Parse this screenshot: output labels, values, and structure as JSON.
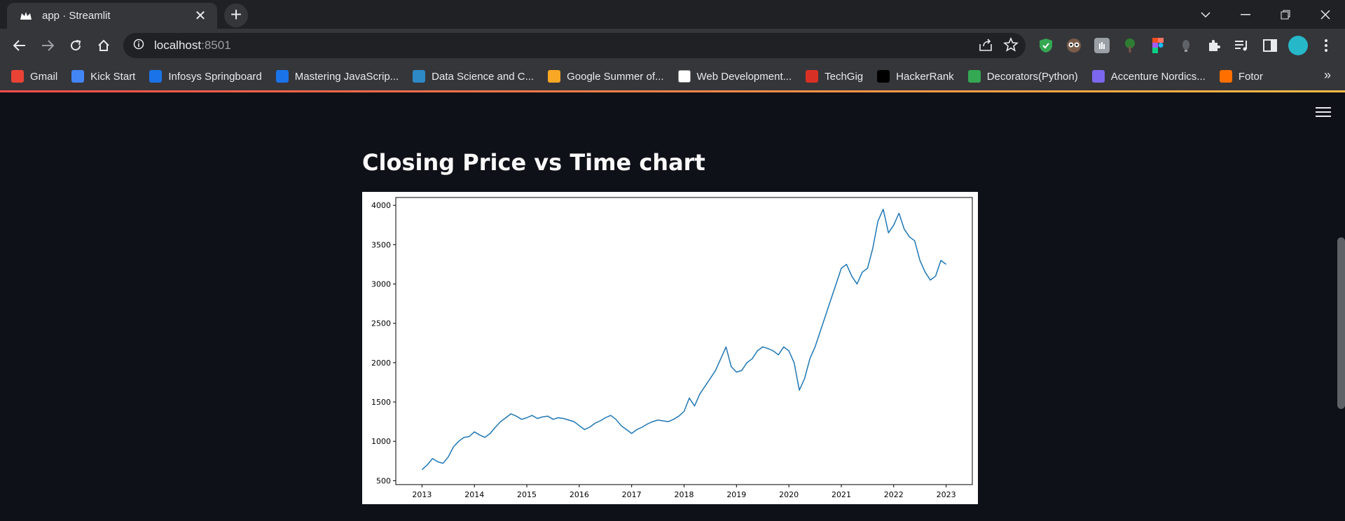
{
  "browser": {
    "tab_title": "app · Streamlit",
    "url_host": "localhost",
    "url_port": ":8501",
    "bookmarks": [
      {
        "label": "Gmail",
        "icon": "gmail-icon",
        "color": "#ea4335"
      },
      {
        "label": "Kick Start",
        "icon": "google-icon",
        "color": "#4285f4"
      },
      {
        "label": "Infosys Springboard",
        "icon": "springboard-icon",
        "color": "#1a73e8"
      },
      {
        "label": "Mastering JavaScrip...",
        "icon": "springboard-icon",
        "color": "#1a73e8"
      },
      {
        "label": "Data Science and C...",
        "icon": "datascience-icon",
        "color": "#2d8ac7"
      },
      {
        "label": "Google Summer of...",
        "icon": "gsoc-icon",
        "color": "#f9a825"
      },
      {
        "label": "Web Development...",
        "icon": "webdev-icon",
        "color": "#ffffff"
      },
      {
        "label": "TechGig",
        "icon": "techgig-icon",
        "color": "#d93025"
      },
      {
        "label": "HackerRank",
        "icon": "hackerrank-icon",
        "color": "#000000"
      },
      {
        "label": "Decorators(Python)",
        "icon": "decorators-icon",
        "color": "#34a853"
      },
      {
        "label": "Accenture Nordics...",
        "icon": "accenture-icon",
        "color": "#7b68ee"
      },
      {
        "label": "Fotor",
        "icon": "fotor-icon",
        "color": "#ff6f00"
      }
    ]
  },
  "page": {
    "heading": "Closing Price vs Time chart"
  },
  "chart_data": {
    "type": "line",
    "title": "",
    "xlabel": "",
    "ylabel": "",
    "x_ticks": [
      "2013",
      "2014",
      "2015",
      "2016",
      "2017",
      "2018",
      "2019",
      "2020",
      "2021",
      "2022",
      "2023"
    ],
    "y_ticks": [
      500,
      1000,
      1500,
      2000,
      2500,
      3000,
      3500,
      4000
    ],
    "xlim": [
      2012.5,
      2023.5
    ],
    "ylim": [
      450,
      4100
    ],
    "line_color": "#1f77b4",
    "series": [
      {
        "x": [
          2013.0,
          2013.1,
          2013.2,
          2013.3,
          2013.4,
          2013.5,
          2013.6,
          2013.7,
          2013.8,
          2013.9,
          2014.0,
          2014.1,
          2014.2,
          2014.3,
          2014.4,
          2014.5,
          2014.6,
          2014.7,
          2014.8,
          2014.9,
          2015.0,
          2015.1,
          2015.2,
          2015.3,
          2015.4,
          2015.5,
          2015.6,
          2015.7,
          2015.8,
          2015.9,
          2016.0,
          2016.1,
          2016.2,
          2016.3,
          2016.4,
          2016.5,
          2016.6,
          2016.7,
          2016.8,
          2016.9,
          2017.0,
          2017.1,
          2017.2,
          2017.3,
          2017.4,
          2017.5,
          2017.6,
          2017.7,
          2017.8,
          2017.9,
          2018.0,
          2018.1,
          2018.2,
          2018.3,
          2018.4,
          2018.5,
          2018.6,
          2018.7,
          2018.8,
          2018.9,
          2019.0,
          2019.1,
          2019.2,
          2019.3,
          2019.4,
          2019.5,
          2019.6,
          2019.7,
          2019.8,
          2019.9,
          2020.0,
          2020.1,
          2020.2,
          2020.3,
          2020.4,
          2020.5,
          2020.6,
          2020.7,
          2020.8,
          2020.9,
          2021.0,
          2021.1,
          2021.2,
          2021.3,
          2021.4,
          2021.5,
          2021.6,
          2021.7,
          2021.8,
          2021.9,
          2022.0,
          2022.1,
          2022.2,
          2022.3,
          2022.4,
          2022.5,
          2022.6,
          2022.7,
          2022.8,
          2022.9,
          2023.0
        ],
        "y": [
          640,
          700,
          780,
          740,
          720,
          800,
          930,
          1000,
          1050,
          1060,
          1120,
          1080,
          1050,
          1100,
          1180,
          1250,
          1300,
          1350,
          1320,
          1280,
          1300,
          1330,
          1290,
          1310,
          1320,
          1280,
          1300,
          1290,
          1270,
          1250,
          1200,
          1150,
          1180,
          1230,
          1260,
          1300,
          1330,
          1280,
          1200,
          1150,
          1100,
          1150,
          1180,
          1220,
          1250,
          1270,
          1260,
          1250,
          1280,
          1320,
          1380,
          1550,
          1450,
          1600,
          1700,
          1800,
          1900,
          2050,
          2200,
          1950,
          1880,
          1900,
          2000,
          2050,
          2150,
          2200,
          2180,
          2150,
          2100,
          2200,
          2150,
          2000,
          1650,
          1800,
          2050,
          2200,
          2400,
          2600,
          2800,
          3000,
          3200,
          3250,
          3100,
          3000,
          3150,
          3200,
          3450,
          3800,
          3950,
          3650,
          3750,
          3900,
          3700,
          3600,
          3550,
          3300,
          3150,
          3050,
          3100,
          3300,
          3250
        ]
      }
    ]
  }
}
